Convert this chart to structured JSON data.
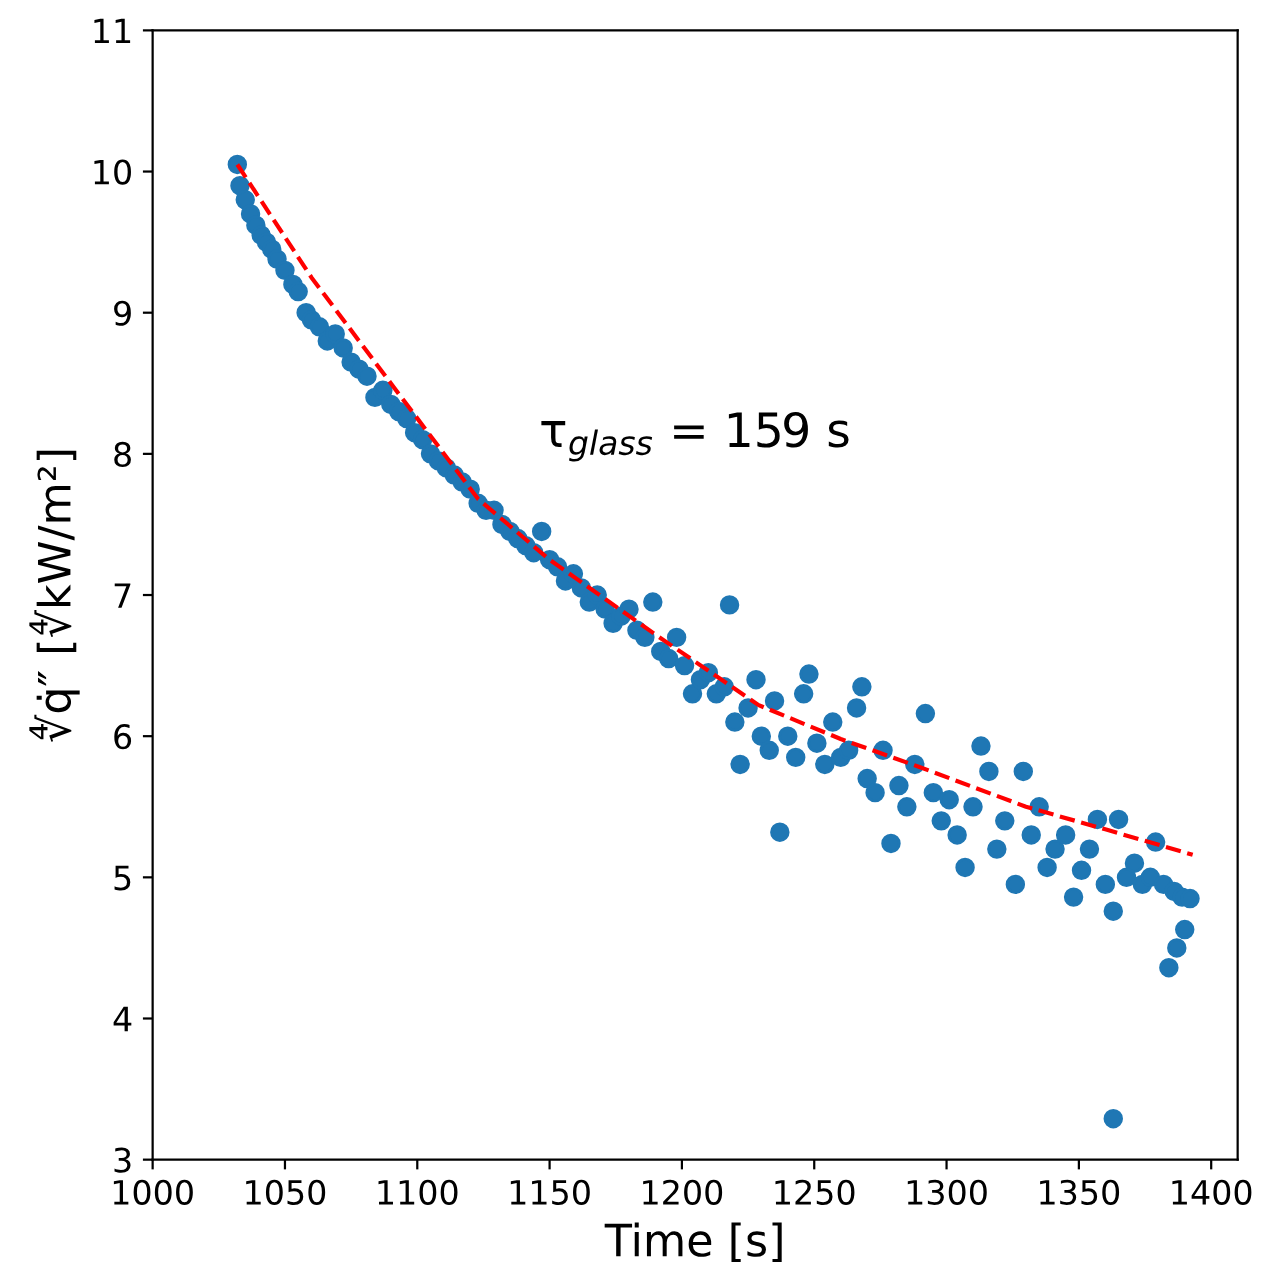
{
  "chart_data": {
    "type": "scatter",
    "xlabel": "Time [s]",
    "ylabel": "∜q̇″ [∜kW/m²]",
    "xlim": [
      1000,
      1410
    ],
    "ylim": [
      3,
      11
    ],
    "xticks": [
      1000,
      1050,
      1100,
      1150,
      1200,
      1250,
      1300,
      1350,
      1400
    ],
    "yticks": [
      3,
      4,
      5,
      6,
      7,
      8,
      9,
      10,
      11
    ],
    "annotations": [
      "τ$_{glass}$ = 159 s"
    ],
    "series": [
      {
        "color": "#1f77b4",
        "marker": "circle",
        "x": [
          1032,
          1033,
          1035,
          1037,
          1039,
          1041,
          1043,
          1045,
          1047,
          1050,
          1053,
          1055,
          1058,
          1060,
          1063,
          1066,
          1069,
          1072,
          1075,
          1078,
          1081,
          1084,
          1087,
          1090,
          1093,
          1096,
          1099,
          1102,
          1105,
          1108,
          1111,
          1114,
          1117,
          1120,
          1123,
          1126,
          1129,
          1132,
          1135,
          1138,
          1141,
          1144,
          1147,
          1150,
          1153,
          1156,
          1159,
          1162,
          1165,
          1168,
          1171,
          1174,
          1177,
          1180,
          1183,
          1186,
          1189,
          1192,
          1195,
          1198,
          1201,
          1204,
          1207,
          1210,
          1213,
          1216,
          1218,
          1220,
          1222,
          1225,
          1228,
          1230,
          1233,
          1235,
          1237,
          1240,
          1243,
          1246,
          1248,
          1251,
          1254,
          1257,
          1260,
          1263,
          1266,
          1268,
          1270,
          1273,
          1276,
          1279,
          1282,
          1285,
          1288,
          1292,
          1295,
          1298,
          1301,
          1304,
          1307,
          1310,
          1313,
          1316,
          1319,
          1322,
          1326,
          1329,
          1332,
          1335,
          1338,
          1341,
          1345,
          1348,
          1351,
          1354,
          1357,
          1360,
          1363,
          1363,
          1365,
          1368,
          1371,
          1374,
          1377,
          1379,
          1382,
          1384,
          1386,
          1387,
          1389,
          1390,
          1392
        ],
        "values": [
          10.05,
          9.9,
          9.8,
          9.7,
          9.62,
          9.55,
          9.5,
          9.45,
          9.38,
          9.3,
          9.2,
          9.15,
          9.0,
          8.95,
          8.9,
          8.8,
          8.85,
          8.75,
          8.65,
          8.6,
          8.55,
          8.4,
          8.45,
          8.35,
          8.3,
          8.25,
          8.15,
          8.1,
          8.0,
          7.95,
          7.9,
          7.85,
          7.8,
          7.75,
          7.65,
          7.6,
          7.6,
          7.5,
          7.45,
          7.4,
          7.35,
          7.3,
          7.45,
          7.25,
          7.2,
          7.1,
          7.15,
          7.05,
          6.95,
          7.0,
          6.9,
          6.8,
          6.85,
          6.9,
          6.75,
          6.7,
          6.95,
          6.6,
          6.55,
          6.7,
          6.5,
          6.3,
          6.4,
          6.45,
          6.3,
          6.35,
          6.93,
          6.1,
          5.8,
          6.2,
          6.4,
          6.0,
          5.9,
          6.25,
          5.32,
          6.0,
          5.85,
          6.3,
          6.44,
          5.95,
          5.8,
          6.1,
          5.85,
          5.9,
          6.2,
          6.35,
          5.7,
          5.6,
          5.9,
          5.24,
          5.65,
          5.5,
          5.8,
          6.16,
          5.6,
          5.4,
          5.55,
          5.3,
          5.07,
          5.5,
          5.93,
          5.75,
          5.2,
          5.4,
          4.95,
          5.75,
          5.3,
          5.5,
          5.07,
          5.2,
          5.3,
          4.86,
          5.05,
          5.2,
          5.41,
          4.95,
          4.76,
          3.29,
          5.41,
          5.0,
          5.1,
          4.95,
          5.0,
          5.25,
          4.95,
          4.36,
          4.9,
          4.5,
          4.86,
          4.63,
          4.85
        ]
      },
      {
        "type": "line",
        "color": "#ff0000",
        "line_style": "dashed",
        "marker": "none",
        "x": [
          1032,
          1060,
          1090,
          1123,
          1150,
          1190,
          1229,
          1260,
          1290,
          1330,
          1360,
          1393
        ],
        "values": [
          10.05,
          9.25,
          8.5,
          7.68,
          7.25,
          6.72,
          6.22,
          5.98,
          5.78,
          5.5,
          5.34,
          5.16
        ]
      }
    ]
  }
}
